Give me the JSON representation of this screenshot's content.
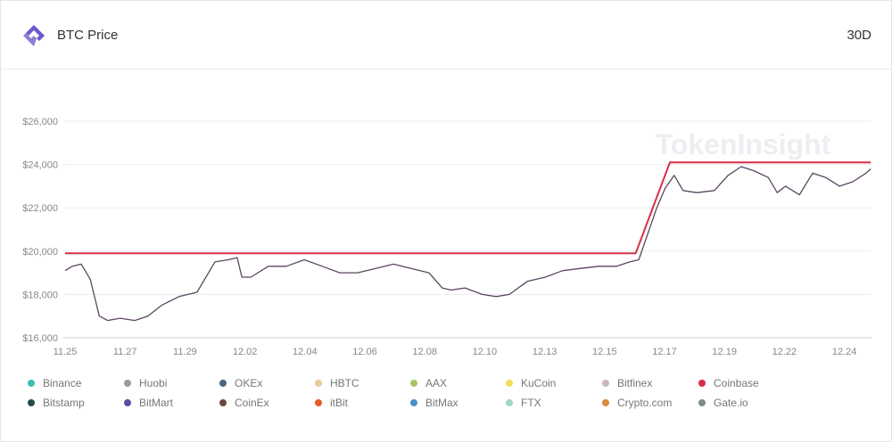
{
  "header": {
    "title": "BTC Price",
    "range": "30D",
    "logo": "tokeninsight-logo-icon"
  },
  "watermark": "TokenInsight",
  "chart_data": {
    "type": "line",
    "title": "BTC Price",
    "x_ticks": [
      "11.25",
      "11.27",
      "11.29",
      "12.02",
      "12.04",
      "12.06",
      "12.08",
      "12.10",
      "12.13",
      "12.15",
      "12.17",
      "12.19",
      "12.22",
      "12.24"
    ],
    "y_ticks": [
      "$16,000",
      "$18,000",
      "$20,000",
      "$22,000",
      "$24,000",
      "$26,000"
    ],
    "ylim": [
      16000,
      26000
    ],
    "grid": true,
    "legend_position": "bottom",
    "legend": [
      {
        "name": "Binance",
        "color": "#3dbfb0"
      },
      {
        "name": "Huobi",
        "color": "#9a9a9a"
      },
      {
        "name": "OKEx",
        "color": "#4a6680"
      },
      {
        "name": "HBTC",
        "color": "#e8c9a0"
      },
      {
        "name": "AAX",
        "color": "#a8c46a"
      },
      {
        "name": "KuCoin",
        "color": "#f2dc5d"
      },
      {
        "name": "Bitfinex",
        "color": "#c9b8c4"
      },
      {
        "name": "Coinbase",
        "color": "#d62d48"
      },
      {
        "name": "Bitstamp",
        "color": "#1f4d4a"
      },
      {
        "name": "BitMart",
        "color": "#5a4fa0"
      },
      {
        "name": "CoinEx",
        "color": "#6b4a3e"
      },
      {
        "name": "itBit",
        "color": "#e8582a"
      },
      {
        "name": "BitMax",
        "color": "#4a8ec4"
      },
      {
        "name": "FTX",
        "color": "#9fd8c0"
      },
      {
        "name": "Crypto.com",
        "color": "#d98a3a"
      },
      {
        "name": "Gate.io",
        "color": "#7a8c8c"
      }
    ],
    "series": [
      {
        "color": "#d62d48",
        "x": [
          0,
          9.52,
          10.09,
          13.44
        ],
        "y": [
          19900,
          19900,
          24100,
          24100
        ]
      },
      {
        "color": "#5b4660",
        "x": [
          0,
          0.12,
          0.27,
          0.42,
          0.57,
          0.71,
          0.92,
          1.16,
          1.38,
          1.61,
          1.9,
          2.2,
          2.5,
          2.72,
          2.87,
          2.95,
          3.1,
          3.39,
          3.69,
          3.99,
          4.29,
          4.58,
          4.88,
          5.18,
          5.48,
          5.77,
          6.07,
          6.29,
          6.44,
          6.67,
          6.96,
          7.19,
          7.41,
          7.71,
          8.01,
          8.3,
          8.6,
          8.9,
          9.2,
          9.42,
          9.57,
          9.72,
          9.87,
          10.01,
          10.16,
          10.31,
          10.54,
          10.83,
          11.06,
          11.28,
          11.5,
          11.73,
          11.88,
          12.02,
          12.25,
          12.47,
          12.69,
          12.92,
          13.14,
          13.36,
          13.44
        ],
        "y": [
          19100,
          19300,
          19400,
          18700,
          17000,
          16800,
          16900,
          16800,
          17000,
          17500,
          17900,
          18100,
          19500,
          19600,
          19700,
          18800,
          18800,
          19300,
          19300,
          19600,
          19300,
          19000,
          19000,
          19200,
          19400,
          19200,
          19000,
          18300,
          18200,
          18300,
          18000,
          17900,
          18000,
          18600,
          18800,
          19100,
          19200,
          19300,
          19300,
          19500,
          19600,
          20800,
          22000,
          22900,
          23500,
          22800,
          22700,
          22800,
          23500,
          23900,
          23700,
          23400,
          22700,
          23000,
          22600,
          23600,
          23400,
          23000,
          23200,
          23600,
          23800
        ]
      }
    ]
  }
}
